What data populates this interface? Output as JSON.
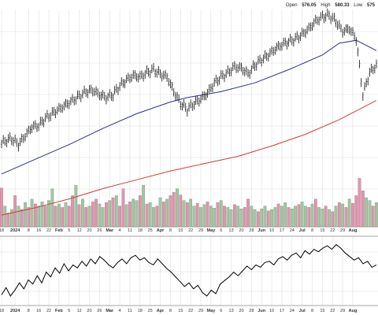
{
  "header": {
    "open_label": "Open",
    "open_value": "576.05",
    "high_label": "High",
    "high_value": "580.33",
    "low_label": "Low",
    "low_value": "575"
  },
  "colors": {
    "price_bar": "#111111",
    "ma_short": "#2b2f8f",
    "ma_long": "#d23a3a",
    "volume_up": "#9fc79f",
    "volume_down": "#e493ad",
    "grid": "#d9d9d9",
    "indicator_line": "#000000"
  },
  "axis_labels": {
    "dates": [
      "18",
      "2024",
      "8",
      "16",
      "22",
      "Feb",
      "5",
      "12",
      "20",
      "26",
      "Mar",
      "4",
      "11",
      "18",
      "25",
      "Apr",
      "8",
      "15",
      "22",
      "29",
      "May",
      "6",
      "13",
      "20",
      "28",
      "Jun",
      "10",
      "17",
      "24",
      "Jul",
      "8",
      "15",
      "22",
      "29",
      "Aug"
    ],
    "bold": [
      "2024",
      "Feb",
      "Mar",
      "Apr",
      "May",
      "Jun",
      "Jul",
      "Aug"
    ]
  },
  "chart_data": {
    "type": "ohlc-with-volume-and-indicator",
    "moving_average_short": "blue line",
    "moving_average_long": "red line",
    "price": [
      {
        "i": 0,
        "v": 477
      },
      {
        "i": 3,
        "v": 479
      },
      {
        "i": 6,
        "v": 480
      },
      {
        "i": 10,
        "v": 476
      },
      {
        "i": 14,
        "v": 482
      },
      {
        "i": 18,
        "v": 488
      },
      {
        "i": 22,
        "v": 489
      },
      {
        "i": 26,
        "v": 494
      },
      {
        "i": 30,
        "v": 497
      },
      {
        "i": 34,
        "v": 500
      },
      {
        "i": 38,
        "v": 503
      },
      {
        "i": 42,
        "v": 506
      },
      {
        "i": 46,
        "v": 509
      },
      {
        "i": 50,
        "v": 512
      },
      {
        "i": 54,
        "v": 513
      },
      {
        "i": 58,
        "v": 510
      },
      {
        "i": 62,
        "v": 508
      },
      {
        "i": 66,
        "v": 510
      },
      {
        "i": 70,
        "v": 516
      },
      {
        "i": 74,
        "v": 520
      },
      {
        "i": 78,
        "v": 523
      },
      {
        "i": 82,
        "v": 522
      },
      {
        "i": 86,
        "v": 525
      },
      {
        "i": 90,
        "v": 527
      },
      {
        "i": 94,
        "v": 524
      },
      {
        "i": 98,
        "v": 522
      },
      {
        "i": 102,
        "v": 512
      },
      {
        "i": 106,
        "v": 504
      },
      {
        "i": 110,
        "v": 500
      },
      {
        "i": 114,
        "v": 504
      },
      {
        "i": 118,
        "v": 507
      },
      {
        "i": 122,
        "v": 511
      },
      {
        "i": 126,
        "v": 518
      },
      {
        "i": 130,
        "v": 522
      },
      {
        "i": 134,
        "v": 525
      },
      {
        "i": 138,
        "v": 529
      },
      {
        "i": 142,
        "v": 528
      },
      {
        "i": 146,
        "v": 524
      },
      {
        "i": 150,
        "v": 530
      },
      {
        "i": 154,
        "v": 534
      },
      {
        "i": 158,
        "v": 537
      },
      {
        "i": 162,
        "v": 541
      },
      {
        "i": 166,
        "v": 544
      },
      {
        "i": 170,
        "v": 546
      },
      {
        "i": 174,
        "v": 548
      },
      {
        "i": 178,
        "v": 551
      },
      {
        "i": 182,
        "v": 555
      },
      {
        "i": 186,
        "v": 560
      },
      {
        "i": 190,
        "v": 563
      },
      {
        "i": 194,
        "v": 564
      },
      {
        "i": 198,
        "v": 560
      },
      {
        "i": 202,
        "v": 553
      },
      {
        "i": 206,
        "v": 555
      },
      {
        "i": 210,
        "v": 548
      },
      {
        "i": 214,
        "v": 510
      },
      {
        "i": 218,
        "v": 525
      },
      {
        "i": 222,
        "v": 530
      }
    ],
    "volume": [
      {
        "i": 0,
        "v": 0.56,
        "up": false
      },
      {
        "i": 2,
        "v": 0.3,
        "up": true
      },
      {
        "i": 4,
        "v": 0.2,
        "up": false
      },
      {
        "i": 6,
        "v": 0.25,
        "up": true
      },
      {
        "i": 8,
        "v": 0.45,
        "up": false
      },
      {
        "i": 10,
        "v": 0.3,
        "up": true
      },
      {
        "i": 12,
        "v": 0.25,
        "up": false
      },
      {
        "i": 14,
        "v": 0.35,
        "up": true
      },
      {
        "i": 16,
        "v": 0.28,
        "up": false
      },
      {
        "i": 18,
        "v": 0.4,
        "up": true
      },
      {
        "i": 20,
        "v": 0.33,
        "up": false
      },
      {
        "i": 22,
        "v": 0.3,
        "up": true
      },
      {
        "i": 24,
        "v": 0.36,
        "up": true
      },
      {
        "i": 26,
        "v": 0.3,
        "up": false
      },
      {
        "i": 28,
        "v": 0.38,
        "up": true
      },
      {
        "i": 30,
        "v": 0.55,
        "up": true
      },
      {
        "i": 32,
        "v": 0.3,
        "up": false
      },
      {
        "i": 34,
        "v": 0.33,
        "up": true
      },
      {
        "i": 36,
        "v": 0.28,
        "up": false
      },
      {
        "i": 38,
        "v": 0.35,
        "up": true
      },
      {
        "i": 40,
        "v": 0.3,
        "up": false
      },
      {
        "i": 42,
        "v": 0.45,
        "up": false
      },
      {
        "i": 44,
        "v": 0.6,
        "up": true
      },
      {
        "i": 46,
        "v": 0.32,
        "up": false
      },
      {
        "i": 48,
        "v": 0.4,
        "up": true
      },
      {
        "i": 50,
        "v": 0.28,
        "up": false
      },
      {
        "i": 52,
        "v": 0.3,
        "up": true
      },
      {
        "i": 54,
        "v": 0.36,
        "up": false
      },
      {
        "i": 56,
        "v": 0.4,
        "up": false
      },
      {
        "i": 58,
        "v": 0.33,
        "up": true
      },
      {
        "i": 60,
        "v": 0.28,
        "up": true
      },
      {
        "i": 62,
        "v": 0.35,
        "up": false
      },
      {
        "i": 64,
        "v": 0.38,
        "up": true
      },
      {
        "i": 66,
        "v": 0.42,
        "up": false
      },
      {
        "i": 68,
        "v": 0.45,
        "up": true
      },
      {
        "i": 70,
        "v": 0.3,
        "up": false
      },
      {
        "i": 72,
        "v": 0.55,
        "up": false
      },
      {
        "i": 74,
        "v": 0.32,
        "up": true
      },
      {
        "i": 76,
        "v": 0.36,
        "up": false
      },
      {
        "i": 78,
        "v": 0.4,
        "up": true
      },
      {
        "i": 80,
        "v": 0.38,
        "up": true
      },
      {
        "i": 82,
        "v": 0.45,
        "up": false
      },
      {
        "i": 84,
        "v": 0.6,
        "up": true
      },
      {
        "i": 86,
        "v": 0.33,
        "up": false
      },
      {
        "i": 88,
        "v": 0.35,
        "up": true
      },
      {
        "i": 90,
        "v": 0.28,
        "up": true
      },
      {
        "i": 92,
        "v": 0.3,
        "up": false
      },
      {
        "i": 94,
        "v": 0.42,
        "up": true
      },
      {
        "i": 96,
        "v": 0.36,
        "up": false
      },
      {
        "i": 98,
        "v": 0.4,
        "up": true
      },
      {
        "i": 100,
        "v": 0.45,
        "up": false
      },
      {
        "i": 102,
        "v": 0.5,
        "up": false
      },
      {
        "i": 104,
        "v": 0.55,
        "up": true
      },
      {
        "i": 106,
        "v": 0.46,
        "up": false
      },
      {
        "i": 108,
        "v": 0.38,
        "up": true
      },
      {
        "i": 110,
        "v": 0.35,
        "up": false
      },
      {
        "i": 112,
        "v": 0.4,
        "up": true
      },
      {
        "i": 114,
        "v": 0.3,
        "up": true
      },
      {
        "i": 116,
        "v": 0.34,
        "up": false
      },
      {
        "i": 118,
        "v": 0.28,
        "up": true
      },
      {
        "i": 120,
        "v": 0.32,
        "up": true
      },
      {
        "i": 122,
        "v": 0.36,
        "up": false
      },
      {
        "i": 124,
        "v": 0.3,
        "up": true
      },
      {
        "i": 126,
        "v": 0.27,
        "up": true
      },
      {
        "i": 128,
        "v": 0.35,
        "up": false
      },
      {
        "i": 130,
        "v": 0.38,
        "up": true
      },
      {
        "i": 132,
        "v": 0.3,
        "up": false
      },
      {
        "i": 134,
        "v": 0.28,
        "up": true
      },
      {
        "i": 136,
        "v": 0.25,
        "up": true
      },
      {
        "i": 138,
        "v": 0.32,
        "up": false
      },
      {
        "i": 140,
        "v": 0.3,
        "up": true
      },
      {
        "i": 142,
        "v": 0.26,
        "up": true
      },
      {
        "i": 144,
        "v": 0.28,
        "up": false
      },
      {
        "i": 146,
        "v": 0.4,
        "up": false
      },
      {
        "i": 148,
        "v": 0.3,
        "up": true
      },
      {
        "i": 150,
        "v": 0.25,
        "up": true
      },
      {
        "i": 152,
        "v": 0.22,
        "up": false
      },
      {
        "i": 154,
        "v": 0.26,
        "up": true
      },
      {
        "i": 156,
        "v": 0.3,
        "up": true
      },
      {
        "i": 158,
        "v": 0.23,
        "up": false
      },
      {
        "i": 160,
        "v": 0.25,
        "up": true
      },
      {
        "i": 162,
        "v": 0.28,
        "up": true
      },
      {
        "i": 164,
        "v": 0.33,
        "up": false
      },
      {
        "i": 166,
        "v": 0.3,
        "up": true
      },
      {
        "i": 168,
        "v": 0.35,
        "up": true
      },
      {
        "i": 170,
        "v": 0.28,
        "up": false
      },
      {
        "i": 172,
        "v": 0.26,
        "up": true
      },
      {
        "i": 174,
        "v": 0.3,
        "up": true
      },
      {
        "i": 176,
        "v": 0.32,
        "up": false
      },
      {
        "i": 178,
        "v": 0.36,
        "up": true
      },
      {
        "i": 180,
        "v": 0.3,
        "up": true
      },
      {
        "i": 182,
        "v": 0.28,
        "up": false
      },
      {
        "i": 184,
        "v": 0.33,
        "up": true
      },
      {
        "i": 186,
        "v": 0.4,
        "up": false
      },
      {
        "i": 188,
        "v": 0.28,
        "up": true
      },
      {
        "i": 190,
        "v": 0.26,
        "up": true
      },
      {
        "i": 192,
        "v": 0.3,
        "up": false
      },
      {
        "i": 194,
        "v": 0.25,
        "up": true
      },
      {
        "i": 196,
        "v": 0.22,
        "up": false
      },
      {
        "i": 198,
        "v": 0.3,
        "up": true
      },
      {
        "i": 200,
        "v": 0.35,
        "up": false
      },
      {
        "i": 202,
        "v": 0.33,
        "up": true
      },
      {
        "i": 204,
        "v": 0.28,
        "up": false
      },
      {
        "i": 206,
        "v": 0.4,
        "up": true
      },
      {
        "i": 208,
        "v": 0.34,
        "up": false
      },
      {
        "i": 210,
        "v": 0.45,
        "up": false
      },
      {
        "i": 212,
        "v": 0.7,
        "up": false
      },
      {
        "i": 214,
        "v": 0.52,
        "up": false
      },
      {
        "i": 216,
        "v": 0.42,
        "up": true
      },
      {
        "i": 218,
        "v": 0.38,
        "up": true
      },
      {
        "i": 220,
        "v": 0.3,
        "up": false
      },
      {
        "i": 222,
        "v": 0.35,
        "up": true
      }
    ],
    "ma_short_values": [
      {
        "i": 0,
        "v": 456
      },
      {
        "i": 20,
        "v": 466
      },
      {
        "i": 40,
        "v": 476
      },
      {
        "i": 60,
        "v": 487
      },
      {
        "i": 80,
        "v": 497
      },
      {
        "i": 100,
        "v": 505
      },
      {
        "i": 110,
        "v": 508
      },
      {
        "i": 130,
        "v": 512
      },
      {
        "i": 150,
        "v": 518
      },
      {
        "i": 170,
        "v": 527
      },
      {
        "i": 190,
        "v": 537
      },
      {
        "i": 200,
        "v": 545
      },
      {
        "i": 210,
        "v": 547
      },
      {
        "i": 222,
        "v": 540
      }
    ],
    "ma_long_values": [
      {
        "i": 0,
        "v": 428
      },
      {
        "i": 20,
        "v": 433
      },
      {
        "i": 40,
        "v": 439
      },
      {
        "i": 60,
        "v": 446
      },
      {
        "i": 80,
        "v": 452
      },
      {
        "i": 100,
        "v": 458
      },
      {
        "i": 120,
        "v": 463
      },
      {
        "i": 140,
        "v": 468
      },
      {
        "i": 160,
        "v": 475
      },
      {
        "i": 180,
        "v": 483
      },
      {
        "i": 200,
        "v": 493
      },
      {
        "i": 222,
        "v": 506
      }
    ],
    "indicator_values": [
      0.1,
      0.22,
      0.08,
      0.18,
      0.3,
      0.2,
      0.35,
      0.28,
      0.42,
      0.3,
      0.48,
      0.4,
      0.55,
      0.46,
      0.62,
      0.5,
      0.6,
      0.55,
      0.66,
      0.58,
      0.7,
      0.62,
      0.74,
      0.68,
      0.6,
      0.55,
      0.64,
      0.7,
      0.62,
      0.72,
      0.76,
      0.68,
      0.72,
      0.64,
      0.6,
      0.7,
      0.62,
      0.54,
      0.48,
      0.4,
      0.32,
      0.24,
      0.3,
      0.2,
      0.26,
      0.14,
      0.08,
      0.18,
      0.12,
      0.28,
      0.34,
      0.4,
      0.48,
      0.42,
      0.5,
      0.58,
      0.52,
      0.6,
      0.56,
      0.64,
      0.66,
      0.6,
      0.7,
      0.74,
      0.68,
      0.76,
      0.8,
      0.72,
      0.84,
      0.78,
      0.86,
      0.82,
      0.88,
      0.92,
      0.86,
      0.94,
      0.88,
      0.8,
      0.74,
      0.68,
      0.72,
      0.62,
      0.66,
      0.56,
      0.6
    ]
  }
}
